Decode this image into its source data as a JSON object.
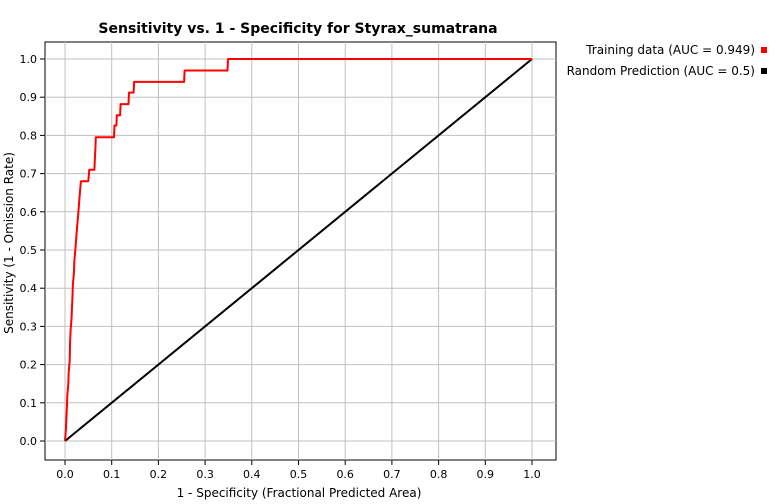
{
  "chart_data": {
    "type": "line",
    "title": "Sensitivity vs. 1 - Specificity for Styrax_sumatrana",
    "xlabel": "1 - Specificity  (Fractional Predicted Area)",
    "ylabel": "Sensitivity  (1 - Omission Rate)",
    "xlim": [
      0,
      1
    ],
    "ylim": [
      0,
      1
    ],
    "xticks": [
      "0.0",
      "0.1",
      "0.2",
      "0.3",
      "0.4",
      "0.5",
      "0.6",
      "0.7",
      "0.8",
      "0.9",
      "1.0"
    ],
    "yticks": [
      "0.0",
      "0.1",
      "0.2",
      "0.3",
      "0.4",
      "0.5",
      "0.6",
      "0.7",
      "0.8",
      "0.9",
      "1.0"
    ],
    "grid": true,
    "legend_position": "top-right outside",
    "series": [
      {
        "name": "Training data (AUC = 0.949)",
        "color": "#ff0000",
        "points": [
          [
            0.0,
            0.0
          ],
          [
            0.002,
            0.03
          ],
          [
            0.004,
            0.09
          ],
          [
            0.005,
            0.12
          ],
          [
            0.007,
            0.15
          ],
          [
            0.008,
            0.18
          ],
          [
            0.01,
            0.21
          ],
          [
            0.011,
            0.26
          ],
          [
            0.012,
            0.29
          ],
          [
            0.014,
            0.32
          ],
          [
            0.015,
            0.35
          ],
          [
            0.016,
            0.38
          ],
          [
            0.017,
            0.41
          ],
          [
            0.019,
            0.44
          ],
          [
            0.02,
            0.47
          ],
          [
            0.022,
            0.5
          ],
          [
            0.024,
            0.53
          ],
          [
            0.026,
            0.56
          ],
          [
            0.028,
            0.59
          ],
          [
            0.03,
            0.62
          ],
          [
            0.032,
            0.65
          ],
          [
            0.034,
            0.68
          ],
          [
            0.05,
            0.68
          ],
          [
            0.052,
            0.71
          ],
          [
            0.063,
            0.71
          ],
          [
            0.064,
            0.74
          ],
          [
            0.065,
            0.765
          ],
          [
            0.066,
            0.795
          ],
          [
            0.105,
            0.795
          ],
          [
            0.106,
            0.826
          ],
          [
            0.11,
            0.826
          ],
          [
            0.111,
            0.853
          ],
          [
            0.118,
            0.853
          ],
          [
            0.119,
            0.882
          ],
          [
            0.136,
            0.882
          ],
          [
            0.137,
            0.912
          ],
          [
            0.147,
            0.912
          ],
          [
            0.148,
            0.94
          ],
          [
            0.255,
            0.94
          ],
          [
            0.256,
            0.97
          ],
          [
            0.348,
            0.97
          ],
          [
            0.349,
            1.0
          ],
          [
            1.0,
            1.0
          ]
        ]
      },
      {
        "name": "Random Prediction (AUC = 0.5)",
        "color": "#000000",
        "points": [
          [
            0.0,
            0.0
          ],
          [
            1.0,
            1.0
          ]
        ]
      }
    ]
  }
}
